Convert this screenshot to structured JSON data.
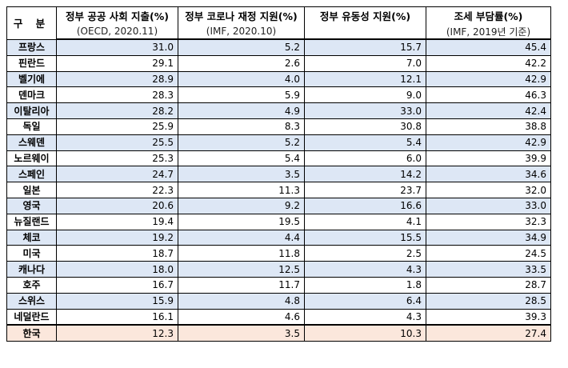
{
  "header": {
    "region_label": "구 분",
    "columns": [
      {
        "title": "정부 공공 사회 지출(%)",
        "source": "(OECD, 2020.11)"
      },
      {
        "title": "정부 코로나 재정 지원(%)",
        "source": "(IMF, 2020.10)"
      },
      {
        "title": "정부 유동성 지원(%)",
        "source": ""
      },
      {
        "title": "조세 부담률(%)",
        "source": "(IMF, 2019년 기준)"
      }
    ]
  },
  "colors": {
    "row_highlight": "#dde7f5",
    "korea_highlight": "#fbe7dc"
  },
  "rows": [
    {
      "country": "프랑스",
      "values": [
        "31.0",
        "5.2",
        "15.7",
        "45.4"
      ]
    },
    {
      "country": "핀란드",
      "values": [
        "29.1",
        "2.6",
        "7.0",
        "42.2"
      ]
    },
    {
      "country": "벨기에",
      "values": [
        "28.9",
        "4.0",
        "12.1",
        "42.9"
      ]
    },
    {
      "country": "덴마크",
      "values": [
        "28.3",
        "5.9",
        "9.0",
        "46.3"
      ]
    },
    {
      "country": "이탈리아",
      "values": [
        "28.2",
        "4.9",
        "33.0",
        "42.4"
      ]
    },
    {
      "country": "독일",
      "values": [
        "25.9",
        "8.3",
        "30.8",
        "38.8"
      ]
    },
    {
      "country": "스웨덴",
      "values": [
        "25.5",
        "5.2",
        "5.4",
        "42.9"
      ]
    },
    {
      "country": "노르웨이",
      "values": [
        "25.3",
        "5.4",
        "6.0",
        "39.9"
      ]
    },
    {
      "country": "스페인",
      "values": [
        "24.7",
        "3.5",
        "14.2",
        "34.6"
      ]
    },
    {
      "country": "일본",
      "values": [
        "22.3",
        "11.3",
        "23.7",
        "32.0"
      ]
    },
    {
      "country": "영국",
      "values": [
        "20.6",
        "9.2",
        "16.6",
        "33.0"
      ]
    },
    {
      "country": "뉴질랜드",
      "values": [
        "19.4",
        "19.5",
        "4.1",
        "32.3"
      ]
    },
    {
      "country": "체코",
      "values": [
        "19.2",
        "4.4",
        "15.5",
        "34.9"
      ]
    },
    {
      "country": "미국",
      "values": [
        "18.7",
        "11.8",
        "2.5",
        "24.5"
      ]
    },
    {
      "country": "캐나다",
      "values": [
        "18.0",
        "12.5",
        "4.3",
        "33.5"
      ]
    },
    {
      "country": "호주",
      "values": [
        "16.7",
        "11.7",
        "1.8",
        "28.7"
      ]
    },
    {
      "country": "스위스",
      "values": [
        "15.9",
        "4.8",
        "6.4",
        "28.5"
      ]
    },
    {
      "country": "네덜란드",
      "values": [
        "16.1",
        "4.6",
        "4.3",
        "39.3"
      ]
    },
    {
      "country": "한국",
      "values": [
        "12.3",
        "3.5",
        "10.3",
        "27.4"
      ]
    }
  ]
}
